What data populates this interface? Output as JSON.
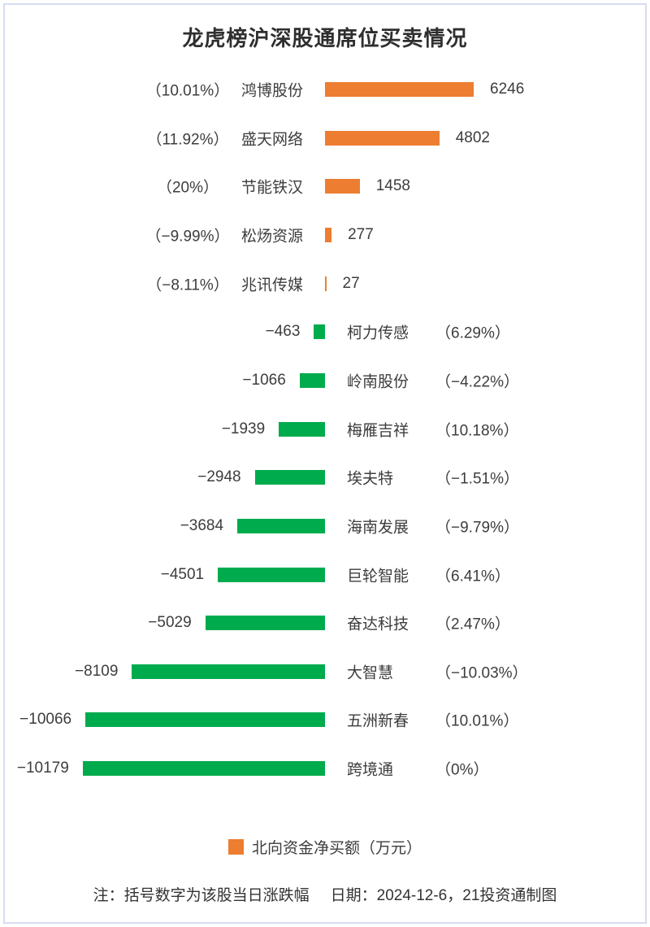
{
  "chart_data": {
    "type": "bar",
    "orientation": "horizontal_diverging",
    "title": "龙虎榜沪深股通席位买卖情况",
    "value_unit": "万元",
    "legend_label": "北向资金净买额（万元）",
    "colors": {
      "positive": "#ED7D31",
      "negative": "#00AB4E"
    },
    "axis_center_value": 0,
    "series": [
      {
        "name": "鸿博股份",
        "change_pct": "（10.01%）",
        "value": 6246,
        "value_label": "6246"
      },
      {
        "name": "盛天网络",
        "change_pct": "（11.92%）",
        "value": 4802,
        "value_label": "4802"
      },
      {
        "name": "节能铁汉",
        "change_pct": "（20%）",
        "value": 1458,
        "value_label": "1458"
      },
      {
        "name": "松炀资源",
        "change_pct": "（−9.99%）",
        "value": 277,
        "value_label": "277"
      },
      {
        "name": "兆讯传媒",
        "change_pct": "（−8.11%）",
        "value": 27,
        "value_label": "27"
      },
      {
        "name": "柯力传感",
        "change_pct": "（6.29%）",
        "value": -463,
        "value_label": "−463"
      },
      {
        "name": "岭南股份",
        "change_pct": "（−4.22%）",
        "value": -1066,
        "value_label": "−1066"
      },
      {
        "name": "梅雁吉祥",
        "change_pct": "（10.18%）",
        "value": -1939,
        "value_label": "−1939"
      },
      {
        "name": "埃夫特",
        "change_pct": "（−1.51%）",
        "value": -2948,
        "value_label": "−2948"
      },
      {
        "name": "海南发展",
        "change_pct": "（−9.79%）",
        "value": -3684,
        "value_label": "−3684"
      },
      {
        "name": "巨轮智能",
        "change_pct": "（6.41%）",
        "value": -4501,
        "value_label": "−4501"
      },
      {
        "name": "奋达科技",
        "change_pct": "（2.47%）",
        "value": -5029,
        "value_label": "−5029"
      },
      {
        "name": "大智慧",
        "change_pct": "（−10.03%）",
        "value": -8109,
        "value_label": "−8109"
      },
      {
        "name": "五洲新春",
        "change_pct": "（10.01%）",
        "value": -10066,
        "value_label": "−10066"
      },
      {
        "name": "跨境通",
        "change_pct": "（0%）",
        "value": -10179,
        "value_label": "−10179"
      }
    ]
  },
  "legend": {
    "label": "北向资金净买额（万元）"
  },
  "footer": {
    "note": "注：括号数字为该股当日涨跌幅",
    "date": "日期：2024-12-6，21投资通制图"
  }
}
